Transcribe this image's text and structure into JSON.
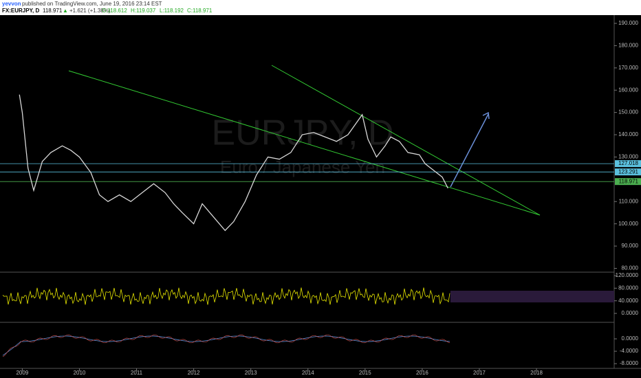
{
  "header": {
    "author": "yevvon",
    "published": "published on TradingView.com, June 19, 2016 23:14 EST",
    "symbol": "FX:EURJPY, D",
    "last": "118.971",
    "arrow": "▲",
    "change": "+1.621 (+1.38%)",
    "open": "O:118.612",
    "high": "H:119.037",
    "low": "L:118.192",
    "close": "C:118.971"
  },
  "watermark": {
    "title": "EURJPY, D",
    "subtitle": "Euro / Japanese Yen"
  },
  "chart_data": {
    "type": "line",
    "x": [
      2008.95,
      2009.0,
      2009.1,
      2009.2,
      2009.35,
      2009.5,
      2009.7,
      2009.85,
      2010.0,
      2010.2,
      2010.35,
      2010.5,
      2010.7,
      2010.9,
      2011.1,
      2011.3,
      2011.5,
      2011.65,
      2011.8,
      2012.0,
      2012.15,
      2012.35,
      2012.55,
      2012.7,
      2012.9,
      2013.1,
      2013.3,
      2013.5,
      2013.7,
      2013.9,
      2014.1,
      2014.3,
      2014.5,
      2014.7,
      2014.95,
      2015.05,
      2015.2,
      2015.35,
      2015.45,
      2015.6,
      2015.75,
      2015.95,
      2016.05,
      2016.2,
      2016.35,
      2016.45
    ],
    "series": [
      {
        "color": "#d8d8d8",
        "values": [
          158,
          150,
          125,
          115,
          128,
          132,
          135,
          133,
          130,
          123,
          113,
          110,
          113,
          110,
          114,
          118,
          114,
          109,
          105,
          100,
          109,
          103,
          97,
          101,
          110,
          122,
          130,
          129,
          132,
          140,
          141,
          139,
          137,
          140,
          149,
          138,
          130,
          135,
          139,
          137,
          132,
          131,
          127,
          124,
          121,
          116
        ]
      }
    ],
    "xlim": [
      2008.61,
      2019.36
    ],
    "xticks": [
      2009,
      2010,
      2011,
      2012,
      2013,
      2014,
      2015,
      2016,
      2017,
      2018
    ],
    "ylim": [
      78.6,
      193.7
    ],
    "yticks": [
      {
        "value": 190,
        "label": "190.000"
      },
      {
        "value": 180,
        "label": "180.000"
      },
      {
        "value": 170,
        "label": "170.000"
      },
      {
        "value": 160,
        "label": "160.000"
      },
      {
        "value": 150,
        "label": "150.000"
      },
      {
        "value": 140,
        "label": "140.000"
      },
      {
        "value": 130,
        "label": "130.000"
      },
      {
        "value": 110,
        "label": "110.000"
      },
      {
        "value": 100,
        "label": "100.000"
      },
      {
        "value": 90,
        "label": "90.000"
      },
      {
        "value": 80,
        "label": "80.000"
      }
    ],
    "price_tags": [
      {
        "value": 127.018,
        "color": "#5bc0de"
      },
      {
        "value": 123.291,
        "color": "#5bc0de"
      },
      {
        "value": 118.971,
        "color": "#4caf50"
      }
    ],
    "rsi": {
      "ylim": [
        -24,
        128.7
      ],
      "yticks": [
        {
          "value": 120,
          "label": "120.0000"
        },
        {
          "value": 80,
          "label": "80.0000"
        },
        {
          "value": 40,
          "label": "40.0000"
        },
        {
          "value": 0,
          "label": "0.0000"
        }
      ]
    },
    "macd": {
      "ylim": [
        -9.3,
        5.1
      ],
      "yticks": [
        {
          "value": 0,
          "label": "0.0000"
        },
        {
          "value": -4,
          "label": "-4.0000"
        },
        {
          "value": -8,
          "label": "-8.0000"
        }
      ]
    }
  }
}
